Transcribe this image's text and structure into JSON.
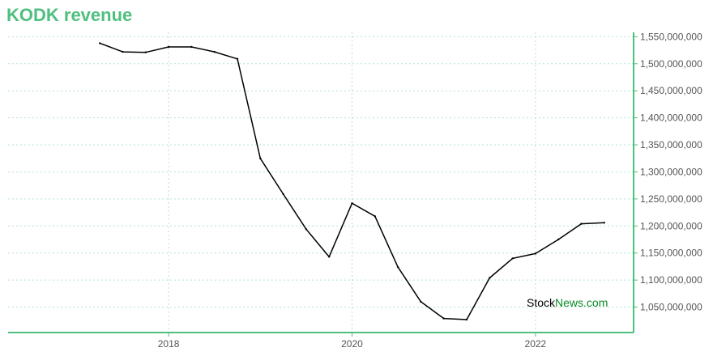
{
  "chart_data": {
    "type": "line",
    "title": "KODK revenue",
    "xlabel": "",
    "ylabel": "",
    "x_ticks": [
      {
        "label": "2018",
        "value": 2018.0
      },
      {
        "label": "2020",
        "value": 2020.0
      },
      {
        "label": "2022",
        "value": 2022.0
      }
    ],
    "y_ticks": [
      {
        "label": "1,050,000,000",
        "value": 1050000000
      },
      {
        "label": "1,100,000,000",
        "value": 1100000000
      },
      {
        "label": "1,150,000,000",
        "value": 1150000000
      },
      {
        "label": "1,200,000,000",
        "value": 1200000000
      },
      {
        "label": "1,250,000,000",
        "value": 1250000000
      },
      {
        "label": "1,300,000,000",
        "value": 1300000000
      },
      {
        "label": "1,350,000,000",
        "value": 1350000000
      },
      {
        "label": "1,400,000,000",
        "value": 1400000000
      },
      {
        "label": "1,450,000,000",
        "value": 1450000000
      },
      {
        "label": "1,500,000,000",
        "value": 1500000000
      },
      {
        "label": "1,550,000,000",
        "value": 1550000000
      }
    ],
    "xlim": [
      2016.25,
      2023.07
    ],
    "ylim": [
      1003000000,
      1558000000
    ],
    "grid": true,
    "series": [
      {
        "color": "#000000",
        "points": [
          {
            "x": 2017.25,
            "y": 1538000000
          },
          {
            "x": 2017.5,
            "y": 1522000000
          },
          {
            "x": 2017.75,
            "y": 1521000000
          },
          {
            "x": 2018.0,
            "y": 1531000000
          },
          {
            "x": 2018.25,
            "y": 1531000000
          },
          {
            "x": 2018.5,
            "y": 1522000000
          },
          {
            "x": 2018.75,
            "y": 1509000000
          },
          {
            "x": 2019.0,
            "y": 1325000000
          },
          {
            "x": 2019.25,
            "y": 1259000000
          },
          {
            "x": 2019.5,
            "y": 1194000000
          },
          {
            "x": 2019.75,
            "y": 1143000000
          },
          {
            "x": 2020.0,
            "y": 1242000000
          },
          {
            "x": 2020.25,
            "y": 1218000000
          },
          {
            "x": 2020.5,
            "y": 1124000000
          },
          {
            "x": 2020.75,
            "y": 1060000000
          },
          {
            "x": 2021.0,
            "y": 1029000000
          },
          {
            "x": 2021.25,
            "y": 1027000000
          },
          {
            "x": 2021.5,
            "y": 1104000000
          },
          {
            "x": 2021.75,
            "y": 1140000000
          },
          {
            "x": 2022.0,
            "y": 1149000000
          },
          {
            "x": 2022.25,
            "y": 1175000000
          },
          {
            "x": 2022.5,
            "y": 1204000000
          },
          {
            "x": 2022.75,
            "y": 1206000000
          }
        ]
      }
    ]
  },
  "watermark": {
    "part1": "Stock",
    "part2": "News.com"
  },
  "colors": {
    "accent": "#4fbf7f",
    "grid": "#b5e3cf",
    "line": "#000000",
    "watermark_green": "#0a8a2a"
  }
}
